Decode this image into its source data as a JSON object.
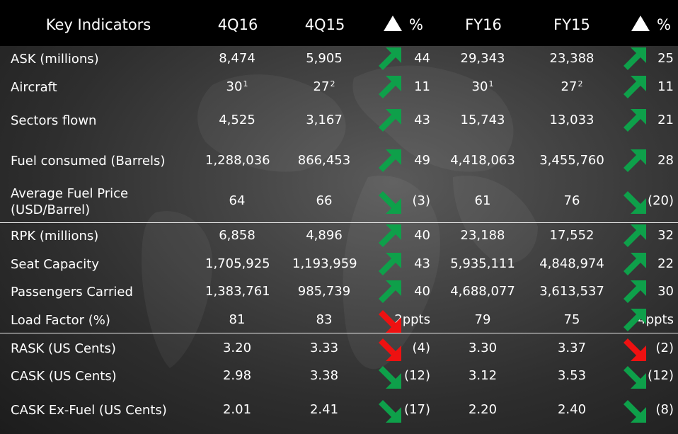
{
  "header": {
    "label": "Key Indicators",
    "cols": [
      "4Q16",
      "4Q15",
      "%",
      "FY16",
      "FY15",
      "%"
    ]
  },
  "colors": {
    "up": "#0ea04a",
    "down": "#ee1111",
    "header_bg": "#000000"
  },
  "rows": [
    {
      "label": "ASK (millions)",
      "q16": "8,474",
      "q15": "5,905",
      "qdir": "up-green",
      "qpct": "44",
      "fy16": "29,343",
      "fy15": "23,388",
      "fdir": "up-green",
      "fpct": "25"
    },
    {
      "label": "Aircraft",
      "q16": "30",
      "q16_sup": "1",
      "q15": "27",
      "q15_sup": "2",
      "qdir": "up-green",
      "qpct": "11",
      "fy16": "30",
      "fy16_sup": "1",
      "fy15": "27",
      "fy15_sup": "2",
      "fdir": "up-green",
      "fpct": "11"
    },
    {
      "label": "Sectors flown",
      "q16": "4,525",
      "q15": "3,167",
      "qdir": "up-green",
      "qpct": "43",
      "fy16": "15,743",
      "fy15": "13,033",
      "fdir": "up-green",
      "fpct": "21"
    },
    {
      "label": "Fuel consumed (Barrels)",
      "q16": "1,288,036",
      "q15": "866,453",
      "qdir": "up-green",
      "qpct": "49",
      "fy16": "4,418,063",
      "fy15": "3,455,760",
      "fdir": "up-green",
      "fpct": "28"
    },
    {
      "label": "Average Fuel Price (USD/Barrel)",
      "q16": "64",
      "q15": "66",
      "qdir": "down-green",
      "qpct": "(3)",
      "fy16": "61",
      "fy15": "76",
      "fdir": "down-green",
      "fpct": "(20)"
    },
    {
      "label": "RPK (millions)",
      "q16": "6,858",
      "q15": "4,896",
      "qdir": "up-green",
      "qpct": "40",
      "fy16": "23,188",
      "fy15": "17,552",
      "fdir": "up-green",
      "fpct": "32"
    },
    {
      "label": "Seat Capacity",
      "q16": "1,705,925",
      "q15": "1,193,959",
      "qdir": "up-green",
      "qpct": "43",
      "fy16": "5,935,111",
      "fy15": "4,848,974",
      "fdir": "up-green",
      "fpct": "22"
    },
    {
      "label": "Passengers Carried",
      "q16": "1,383,761",
      "q15": "985,739",
      "qdir": "up-green",
      "qpct": "40",
      "fy16": "4,688,077",
      "fy15": "3,613,537",
      "fdir": "up-green",
      "fpct": "30"
    },
    {
      "label": "Load Factor (%)",
      "q16": "81",
      "q15": "83",
      "qdir": "down-red",
      "qpct": "2ppts",
      "fy16": "79",
      "fy15": "75",
      "fdir": "up-green",
      "fpct": "4ppts"
    },
    {
      "label": "RASK (US Cents)",
      "q16": "3.20",
      "q15": "3.33",
      "qdir": "down-red",
      "qpct": "(4)",
      "fy16": "3.30",
      "fy15": "3.37",
      "fdir": "down-red",
      "fpct": "(2)"
    },
    {
      "label": "CASK (US Cents)",
      "q16": "2.98",
      "q15": "3.38",
      "qdir": "down-green",
      "qpct": "(12)",
      "fy16": "3.12",
      "fy15": "3.53",
      "fdir": "down-green",
      "fpct": "(12)"
    },
    {
      "label": "CASK Ex-Fuel (US Cents)",
      "q16": "2.01",
      "q15": "2.41",
      "qdir": "down-green",
      "qpct": "(17)",
      "fy16": "2.20",
      "fy15": "2.40",
      "fdir": "down-green",
      "fpct": "(8)"
    }
  ]
}
